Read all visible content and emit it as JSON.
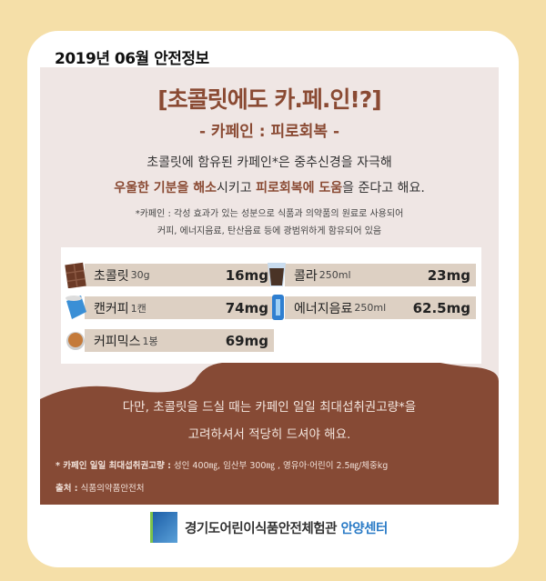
{
  "header": "2019년 06월 안전정보",
  "title": "[초콜릿에도 카.페.인!?]",
  "subtitle": "- 카페인 : 피로회복 -",
  "intro": {
    "line1": "초콜릿에 함유된 카페인*은 중추신경을 자극해",
    "line2": [
      {
        "t": "우울한 기분을 해소",
        "hl": true
      },
      {
        "t": "시키고 ",
        "hl": false
      },
      {
        "t": "피로회복에 도움",
        "hl": true
      },
      {
        "t": "을 준다고 해요.",
        "hl": false
      }
    ]
  },
  "note": {
    "line1": "*카페인 : 각성 효과가 있는 성분으로 식품과 의약품의 원료로 사용되어",
    "line2": "커피, 에너지음료, 탄산음료 등에 광범위하게 함유되어 있음"
  },
  "items": [
    {
      "name": "초콜릿",
      "unit": "30g",
      "value": "16mg",
      "icon": "chocolate-bar-icon"
    },
    {
      "name": "콜라",
      "unit": "250ml",
      "value": "23mg",
      "icon": "cola-glass-icon"
    },
    {
      "name": "캔커피",
      "unit": " 1캔",
      "value": "74mg",
      "icon": "coffee-can-icon"
    },
    {
      "name": "에너지음료",
      "unit": "250ml",
      "value": "62.5mg",
      "icon": "energy-drink-icon"
    },
    {
      "name": "커피믹스",
      "unit": " 1봉",
      "value": "69mg",
      "icon": "coffee-cup-icon"
    }
  ],
  "warning": {
    "line1": "다만, 초콜릿을 드실 때는 카페인 일일 최대섭취권고량*을",
    "line2": "고려하셔서 적당히 드셔야 해요."
  },
  "footnote": {
    "label": "* 카페인 일일 최대섭취권고량 :",
    "text": " 성인 400㎎, 임산부 300㎎ , 영유아·어린이 2.5㎎/체중kg"
  },
  "source": {
    "label": "출처 :",
    "text": " 식품의약품안전처"
  },
  "footer": {
    "org": "경기도어린이식품안전체험관 ",
    "center": "안양센터"
  },
  "colors": {
    "accent": "#8a4a33",
    "wave": "#864a35",
    "border": "#f5dfa8",
    "panel": "#efe6e4",
    "center": "#2a7bc6"
  }
}
